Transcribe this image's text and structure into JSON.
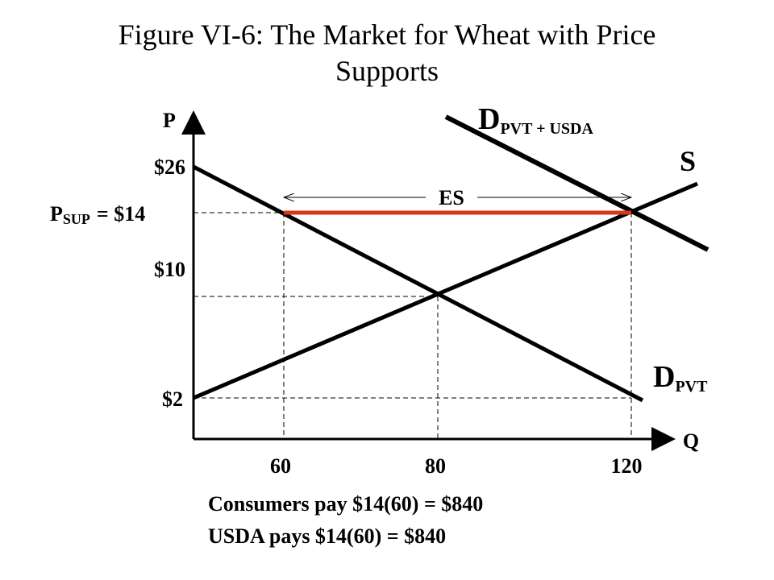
{
  "title_lines": [
    "Figure VI-6: The Market for Wheat with Price",
    "Supports"
  ],
  "axes": {
    "y_label": "P",
    "x_label": "Q"
  },
  "price_labels": {
    "p26": "$26",
    "psup": {
      "main": "P",
      "sub": "SUP",
      "rest": "= $14"
    },
    "p10": "$10",
    "p2": "$2"
  },
  "quantity_labels": [
    "60",
    "80",
    "120"
  ],
  "curves": {
    "demand_total": {
      "main": "D",
      "sub": "PVT + USDA"
    },
    "supply": "S",
    "demand_private": {
      "main": "D",
      "sub": "PVT"
    },
    "excess_supply": "ES"
  },
  "notes": [
    "Consumers pay $14(60) = $840",
    "USDA pays $14(60) = $840"
  ]
}
